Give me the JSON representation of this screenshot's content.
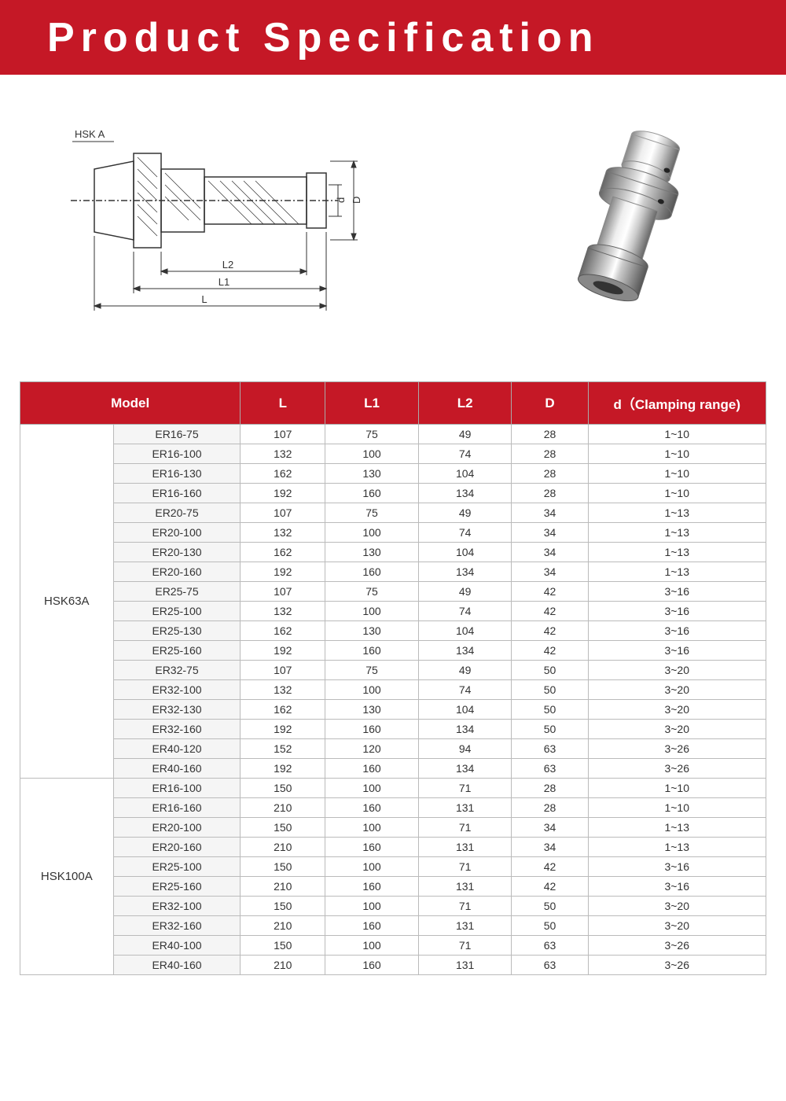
{
  "header": {
    "title": "Product  Specification"
  },
  "diagram": {
    "label_top": "HSK A",
    "dim_L": "L",
    "dim_L1": "L1",
    "dim_L2": "L2",
    "dim_D": "D",
    "dim_d": "d"
  },
  "table": {
    "headers": {
      "model": "Model",
      "L": "L",
      "L1": "L1",
      "L2": "L2",
      "D": "D",
      "range": "d（Clamping range)"
    },
    "groups": [
      {
        "name": "HSK63A",
        "rows": [
          {
            "model": "ER16-75",
            "L": "107",
            "L1": "75",
            "L2": "49",
            "D": "28",
            "range": "1~10"
          },
          {
            "model": "ER16-100",
            "L": "132",
            "L1": "100",
            "L2": "74",
            "D": "28",
            "range": "1~10"
          },
          {
            "model": "ER16-130",
            "L": "162",
            "L1": "130",
            "L2": "104",
            "D": "28",
            "range": "1~10"
          },
          {
            "model": "ER16-160",
            "L": "192",
            "L1": "160",
            "L2": "134",
            "D": "28",
            "range": "1~10"
          },
          {
            "model": "ER20-75",
            "L": "107",
            "L1": "75",
            "L2": "49",
            "D": "34",
            "range": "1~13"
          },
          {
            "model": "ER20-100",
            "L": "132",
            "L1": "100",
            "L2": "74",
            "D": "34",
            "range": "1~13"
          },
          {
            "model": "ER20-130",
            "L": "162",
            "L1": "130",
            "L2": "104",
            "D": "34",
            "range": "1~13"
          },
          {
            "model": "ER20-160",
            "L": "192",
            "L1": "160",
            "L2": "134",
            "D": "34",
            "range": "1~13"
          },
          {
            "model": "ER25-75",
            "L": "107",
            "L1": "75",
            "L2": "49",
            "D": "42",
            "range": "3~16"
          },
          {
            "model": "ER25-100",
            "L": "132",
            "L1": "100",
            "L2": "74",
            "D": "42",
            "range": "3~16"
          },
          {
            "model": "ER25-130",
            "L": "162",
            "L1": "130",
            "L2": "104",
            "D": "42",
            "range": "3~16"
          },
          {
            "model": "ER25-160",
            "L": "192",
            "L1": "160",
            "L2": "134",
            "D": "42",
            "range": "3~16"
          },
          {
            "model": "ER32-75",
            "L": "107",
            "L1": "75",
            "L2": "49",
            "D": "50",
            "range": "3~20"
          },
          {
            "model": "ER32-100",
            "L": "132",
            "L1": "100",
            "L2": "74",
            "D": "50",
            "range": "3~20"
          },
          {
            "model": "ER32-130",
            "L": "162",
            "L1": "130",
            "L2": "104",
            "D": "50",
            "range": "3~20"
          },
          {
            "model": "ER32-160",
            "L": "192",
            "L1": "160",
            "L2": "134",
            "D": "50",
            "range": "3~20"
          },
          {
            "model": "ER40-120",
            "L": "152",
            "L1": "120",
            "L2": "94",
            "D": "63",
            "range": "3~26"
          },
          {
            "model": "ER40-160",
            "L": "192",
            "L1": "160",
            "L2": "134",
            "D": "63",
            "range": "3~26"
          }
        ]
      },
      {
        "name": "HSK100A",
        "rows": [
          {
            "model": "ER16-100",
            "L": "150",
            "L1": "100",
            "L2": "71",
            "D": "28",
            "range": "1~10"
          },
          {
            "model": "ER16-160",
            "L": "210",
            "L1": "160",
            "L2": "131",
            "D": "28",
            "range": "1~10"
          },
          {
            "model": "ER20-100",
            "L": "150",
            "L1": "100",
            "L2": "71",
            "D": "34",
            "range": "1~13"
          },
          {
            "model": "ER20-160",
            "L": "210",
            "L1": "160",
            "L2": "131",
            "D": "34",
            "range": "1~13"
          },
          {
            "model": "ER25-100",
            "L": "150",
            "L1": "100",
            "L2": "71",
            "D": "42",
            "range": "3~16"
          },
          {
            "model": "ER25-160",
            "L": "210",
            "L1": "160",
            "L2": "131",
            "D": "42",
            "range": "3~16"
          },
          {
            "model": "ER32-100",
            "L": "150",
            "L1": "100",
            "L2": "71",
            "D": "50",
            "range": "3~20"
          },
          {
            "model": "ER32-160",
            "L": "210",
            "L1": "160",
            "L2": "131",
            "D": "50",
            "range": "3~20"
          },
          {
            "model": "ER40-100",
            "L": "150",
            "L1": "100",
            "L2": "71",
            "D": "63",
            "range": "3~26"
          },
          {
            "model": "ER40-160",
            "L": "210",
            "L1": "160",
            "L2": "131",
            "D": "63",
            "range": "3~26"
          }
        ]
      }
    ]
  },
  "styling": {
    "accent_color": "#c51826",
    "border_color": "#bbb",
    "alt_row_bg": "#f5f5f5",
    "text_color": "#333"
  }
}
